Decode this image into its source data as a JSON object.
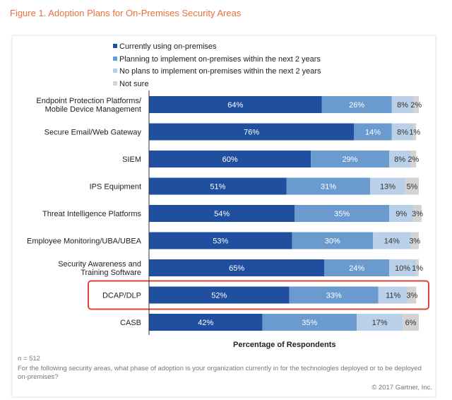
{
  "title": "Figure 1. Adoption Plans for On-Premises Security Areas",
  "chart_data": {
    "type": "bar",
    "orientation": "horizontal",
    "stacked": true,
    "xlabel": "Percentage of Respondents",
    "xlim": [
      0,
      100
    ],
    "legend_position": "top",
    "categories": [
      "Endpoint Protection Platforms/\nMobile Device Management",
      "Secure Email/Web Gateway",
      "SIEM",
      "IPS Equipment",
      "Threat Intelligence Platforms",
      "Employee Monitoring/UBA/UBEA",
      "Security Awareness and\nTraining Software",
      "DCAP/DLP",
      "CASB"
    ],
    "series": [
      {
        "name": "Currently using on-premises",
        "color": "#1f4f9e",
        "values": [
          64,
          76,
          60,
          51,
          54,
          53,
          65,
          52,
          42
        ]
      },
      {
        "name": "Planning to implement on-premises within the next 2 years",
        "color": "#6b9acf",
        "values": [
          26,
          14,
          29,
          31,
          35,
          30,
          24,
          33,
          35
        ]
      },
      {
        "name": "No plans to implement on-premises within the next 2 years",
        "color": "#b9d0e8",
        "values": [
          8,
          8,
          8,
          13,
          9,
          14,
          10,
          11,
          17
        ]
      },
      {
        "name": "Not sure",
        "color": "#d3d3d3",
        "values": [
          2,
          1,
          2,
          5,
          3,
          3,
          1,
          3,
          6
        ]
      }
    ],
    "highlighted_category": "DCAP/DLP",
    "highlight_color": "#d9463a"
  },
  "notes": {
    "n": "n = 512",
    "question": "For the following security areas, what phase of adoption is your organization currently in for the technologies deployed or to be deployed on-premises?",
    "copyright": "© 2017 Gartner, Inc."
  }
}
